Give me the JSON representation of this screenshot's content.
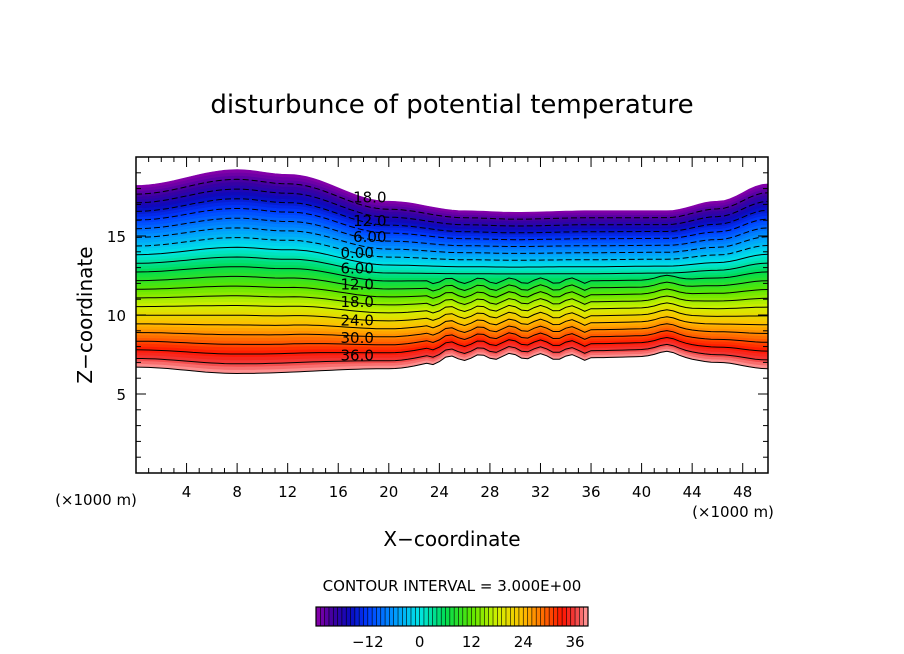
{
  "chart_data": {
    "type": "contour",
    "title": "disturbunce of potential temperature",
    "xlabel": "X−coordinate",
    "ylabel": "Z−coordinate",
    "x_unit_left": "(×1000 m)",
    "x_unit_right": "(×1000 m)",
    "xlim": [
      0,
      50
    ],
    "ylim": [
      0,
      20
    ],
    "x_ticks": [
      4,
      8,
      12,
      16,
      20,
      24,
      28,
      32,
      36,
      40,
      44,
      48
    ],
    "y_ticks": [
      5,
      10,
      15
    ],
    "contour_interval_text": "CONTOUR INTERVAL = 3.000E+00",
    "contour_interval": 3,
    "value_range": [
      -24,
      39
    ],
    "contour_labels": [
      {
        "text": "18.0",
        "x": 18.5,
        "z": 17.5
      },
      {
        "text": "12.0",
        "x": 18.5,
        "z": 16.0
      },
      {
        "text": "6.00",
        "x": 18.5,
        "z": 15.0
      },
      {
        "text": "0.00",
        "x": 17.5,
        "z": 14.0
      },
      {
        "text": "6.00",
        "x": 17.5,
        "z": 13.0
      },
      {
        "text": "12.0",
        "x": 17.5,
        "z": 12.0
      },
      {
        "text": "18.0",
        "x": 17.5,
        "z": 10.9
      },
      {
        "text": "24.0",
        "x": 17.5,
        "z": 9.7
      },
      {
        "text": "30.0",
        "x": 17.5,
        "z": 8.6
      },
      {
        "text": "36.0",
        "x": 17.5,
        "z": 7.5
      }
    ],
    "band_bottom_profile": {
      "x": [
        0,
        8,
        20,
        26,
        30,
        36,
        42,
        46,
        50
      ],
      "z": [
        6.7,
        6.3,
        6.6,
        7.3,
        7.4,
        7.3,
        7.4,
        7.0,
        6.6
      ]
    },
    "band_top_profile": {
      "x": [
        0,
        8,
        12,
        20,
        26,
        30,
        36,
        42,
        46,
        50
      ],
      "z": [
        18.2,
        19.2,
        18.9,
        17.2,
        16.6,
        16.5,
        16.6,
        16.6,
        17.2,
        18.3
      ]
    },
    "colorbar": {
      "tick_labels": [
        "−12",
        "0",
        "12",
        "24",
        "36"
      ],
      "tick_values": [
        -12,
        0,
        12,
        24,
        36
      ],
      "range": [
        -24,
        39
      ]
    }
  }
}
